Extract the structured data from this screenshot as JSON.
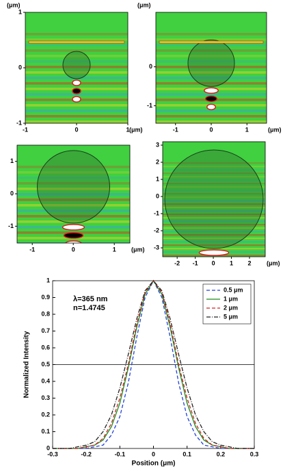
{
  "field_maps": [
    {
      "xlim": [
        -1,
        1
      ],
      "ylim": [
        -1,
        1
      ],
      "xticks": [
        -1,
        0,
        1
      ],
      "yticks": [
        -1,
        0,
        1
      ],
      "x_unit": "(μm)",
      "y_unit": "(μm)"
    },
    {
      "xlim": [
        -1.55,
        1.55
      ],
      "ylim": [
        -1.45,
        1.4
      ],
      "xticks": [
        -1,
        0,
        1
      ],
      "yticks": [
        -1,
        0
      ],
      "x_unit": "(μm)",
      "y_unit": "(μm)"
    },
    {
      "xlim": [
        -1.37,
        1.38
      ],
      "ylim": [
        -1.52,
        1.5
      ],
      "xticks": [
        -1,
        0,
        1
      ],
      "yticks": [
        -1,
        0,
        1
      ],
      "x_unit": "(μm)"
    },
    {
      "xlim": [
        -2.8,
        2.87
      ],
      "ylim": [
        -3.52,
        3.2
      ],
      "xticks": [
        -2,
        -1,
        0,
        1,
        2
      ],
      "yticks": [
        -3,
        -2,
        -1,
        0,
        1,
        2,
        3
      ],
      "x_unit": "(μm)"
    }
  ],
  "chart_data": {
    "type": "line",
    "x_label": "Position (μm)",
    "y_label": "Normalized Intensity",
    "annotations": [
      "λ=365 nm",
      "n=1.4745"
    ],
    "xlim": [
      -0.3,
      0.3
    ],
    "ylim": [
      0,
      1
    ],
    "xticks": [
      -0.3,
      -0.2,
      -0.1,
      0,
      0.1,
      0.2,
      0.3
    ],
    "yticks": [
      0,
      0.1,
      0.2,
      0.3,
      0.4,
      0.5,
      0.6,
      0.7,
      0.8,
      0.9,
      1
    ],
    "hline": 0.5,
    "legend": "top-right",
    "x": [
      -0.3,
      -0.275,
      -0.25,
      -0.225,
      -0.2,
      -0.175,
      -0.15,
      -0.125,
      -0.1,
      -0.075,
      -0.05,
      -0.025,
      0,
      0.025,
      0.05,
      0.075,
      0.1,
      0.125,
      0.15,
      0.175,
      0.2,
      0.225,
      0.25,
      0.275,
      0.3
    ],
    "series": [
      {
        "name": "0.5 μm",
        "color": "#2040d8",
        "dash": "5,3",
        "values": [
          0,
          0,
          0,
          0,
          0,
          0.01,
          0.02,
          0.08,
          0.19,
          0.39,
          0.66,
          0.9,
          1,
          0.9,
          0.66,
          0.39,
          0.19,
          0.08,
          0.02,
          0.01,
          0,
          0,
          0,
          0,
          0
        ]
      },
      {
        "name": "1 μm",
        "color": "#1a8a1a",
        "dash": "none",
        "values": [
          0,
          0,
          0,
          0,
          0.01,
          0.02,
          0.05,
          0.13,
          0.27,
          0.48,
          0.72,
          0.92,
          1,
          0.92,
          0.72,
          0.48,
          0.27,
          0.13,
          0.05,
          0.02,
          0.01,
          0,
          0,
          0,
          0
        ]
      },
      {
        "name": "2 μm",
        "color": "#d02020",
        "dash": "5,3",
        "values": [
          0,
          0,
          0,
          0,
          0.01,
          0.02,
          0.06,
          0.15,
          0.3,
          0.5,
          0.74,
          0.93,
          1,
          0.93,
          0.74,
          0.5,
          0.3,
          0.15,
          0.06,
          0.02,
          0.01,
          0,
          0,
          0,
          0
        ]
      },
      {
        "name": "5 μm",
        "color": "#222222",
        "dash": "6,2,1,2",
        "values": [
          0,
          0,
          0,
          0.01,
          0.02,
          0.04,
          0.1,
          0.2,
          0.36,
          0.56,
          0.77,
          0.94,
          1,
          0.94,
          0.77,
          0.56,
          0.36,
          0.2,
          0.1,
          0.04,
          0.02,
          0.01,
          0,
          0,
          0
        ]
      }
    ]
  }
}
